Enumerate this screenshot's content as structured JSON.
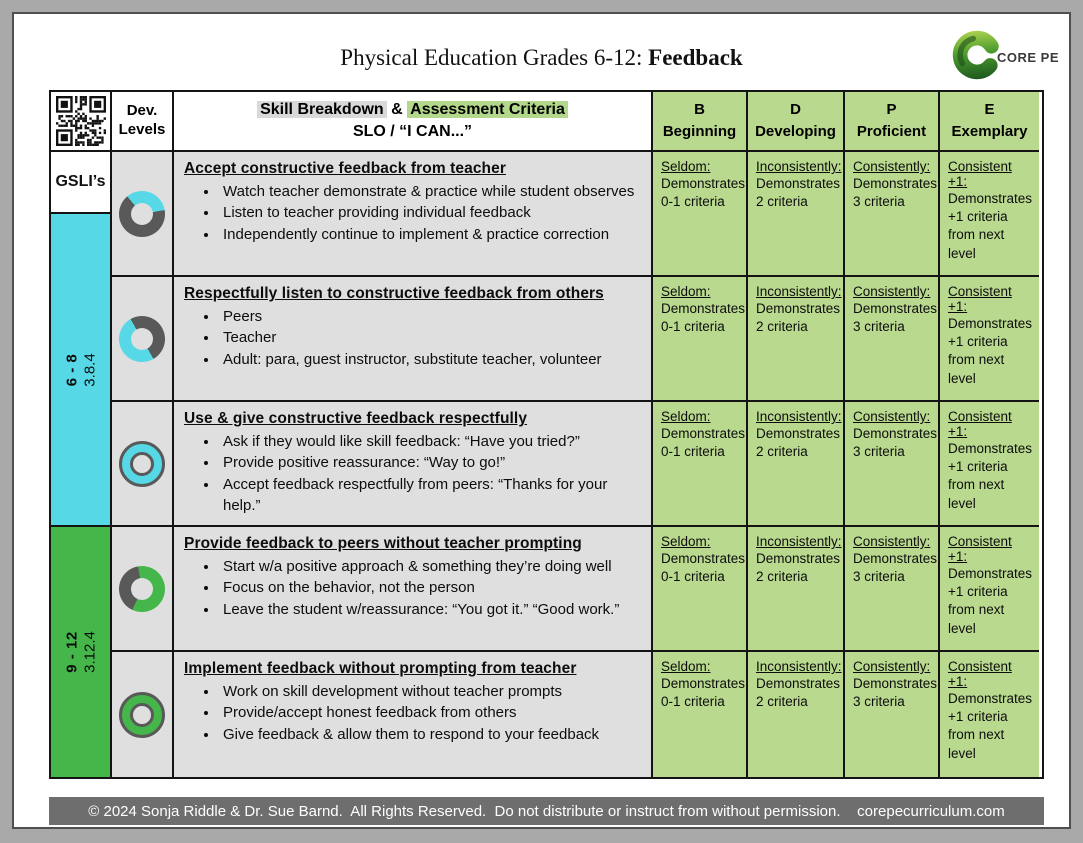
{
  "title": {
    "prefix": "Physical Education Grades 6-12: ",
    "bold": "Feedback"
  },
  "logo": {
    "text": "CORE PE"
  },
  "colors": {
    "criteria_green": "#b9d98e",
    "band_cyan": "#57d8e6",
    "band_green": "#45b649",
    "cell_gray": "#dfdfdf",
    "donut_gray": "#595959",
    "footer_gray": "#6e6e6e"
  },
  "table": {
    "header": {
      "dev_levels": "Dev.\nLevels",
      "skill_gray_highlight": "Skill Breakdown",
      "skill_amp": " & ",
      "skill_green_highlight": "Assessment Criteria",
      "skill_line2": "SLO / “I CAN...”",
      "levels": [
        {
          "code": "B",
          "name": "Beginning"
        },
        {
          "code": "D",
          "name": "Developing"
        },
        {
          "code": "P",
          "name": "Proficient"
        },
        {
          "code": "E",
          "name": "Exemplary"
        }
      ]
    },
    "left": {
      "gsli": "GSLI’s",
      "band_6_8": {
        "grades": "6 - 8",
        "standard": "3.8.4"
      },
      "band_9_12": {
        "grades": "9 - 12",
        "standard": "3.12.4"
      }
    },
    "criteria": [
      {
        "label": "Seldom:",
        "text": "Demonstrates\n0-1 criteria"
      },
      {
        "label": "Inconsistently:",
        "text": "Demonstrates\n2 criteria"
      },
      {
        "label": "Consistently:",
        "text": "Demonstrates\n3 criteria"
      },
      {
        "label": "Consistent +1:",
        "text": "Demonstrates\n+1 criteria\nfrom next level"
      }
    ],
    "rows": [
      {
        "title": "Accept constructive feedback from teacher",
        "bullets": [
          "Watch teacher demonstrate & practice while student observes",
          "Listen to teacher providing individual feedback",
          "Independently continue to implement & practice correction"
        ]
      },
      {
        "title": "Respectfully listen to constructive feedback from others",
        "bullets": [
          "Peers",
          "Teacher",
          "Adult: para, guest instructor, substitute teacher, volunteer"
        ]
      },
      {
        "title": "Use & give constructive feedback respectfully",
        "bullets": [
          "Ask if they would like skill feedback: “Have you tried?”",
          "Provide positive reassurance: “Way to go!”",
          "Accept feedback respectfully from peers: “Thanks for your help.”"
        ]
      },
      {
        "title": "Provide feedback to peers without teacher prompting",
        "bullets": [
          "Start w/a positive approach & something they’re doing well",
          "Focus on the behavior, not the person",
          "Leave the student w/reassurance: “You got it.” “Good work.”"
        ]
      },
      {
        "title": "Implement feedback without prompting from teacher",
        "bullets": [
          "Work on skill development without teacher prompts",
          "Provide/accept honest feedback from others",
          "Give feedback & allow them to respond to your feedback"
        ]
      }
    ]
  },
  "footer": {
    "text": "© 2024 Sonja Riddle & Dr. Sue Barnd.  All Rights Reserved.  Do not distribute or instruct from without permission.    corepecurriculum.com"
  }
}
